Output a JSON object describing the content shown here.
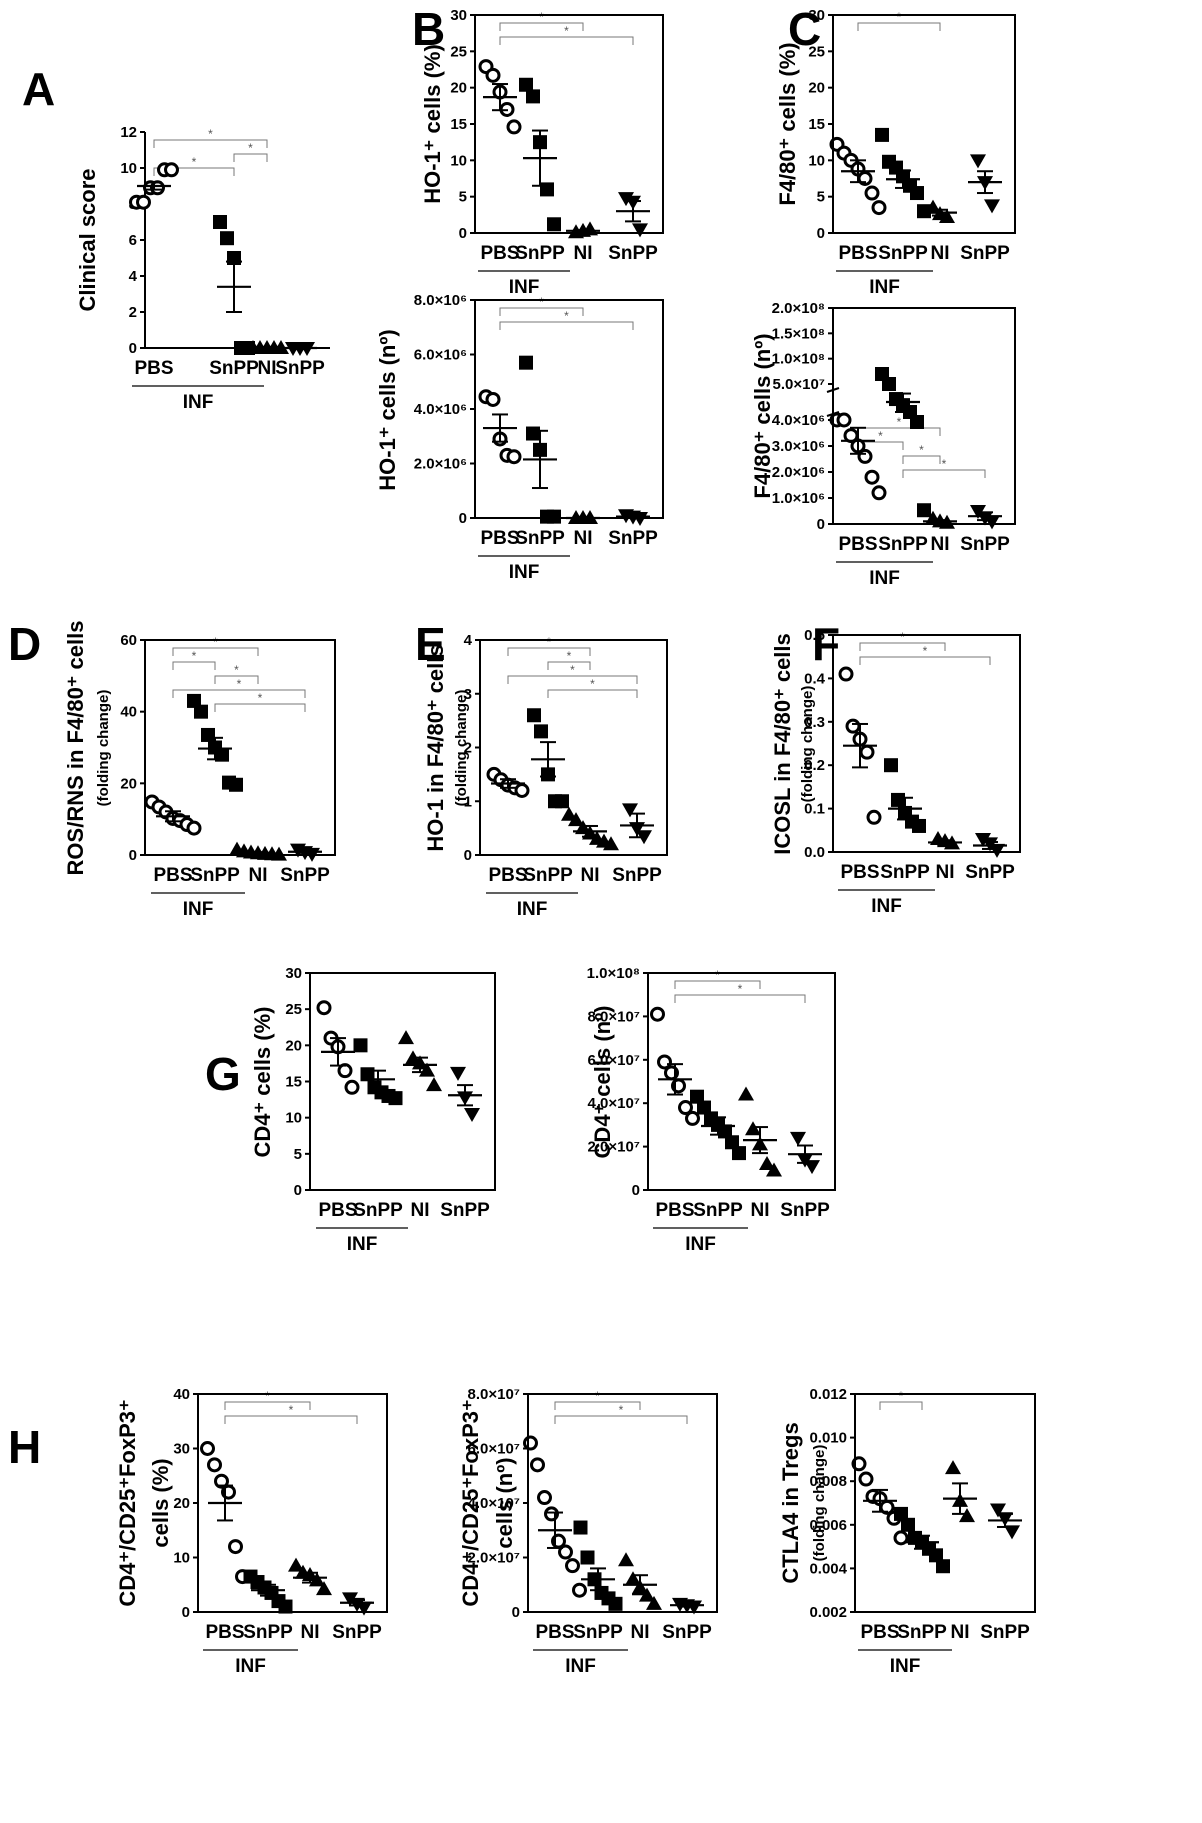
{
  "figure": {
    "panel_labels": [
      "A",
      "B",
      "C",
      "D",
      "E",
      "F",
      "G",
      "H"
    ],
    "group_label": "INF",
    "significance_marker": "*"
  },
  "chart_data": [
    {
      "id": "A",
      "type": "scatter",
      "ylabel": "Clinical score",
      "ylim": [
        0,
        12
      ],
      "yticks": [
        "0",
        "2",
        "4",
        "6",
        "8",
        "10",
        "12"
      ],
      "categories": [
        "PBS",
        "SnPP",
        "NI",
        "SnPP"
      ],
      "markers": [
        "circle",
        "square",
        "triangle",
        "tri-down"
      ],
      "means": [
        9.0,
        3.4,
        0.0,
        0.0
      ],
      "sems": [
        0.2,
        1.4,
        0,
        0
      ],
      "points": [
        [
          8.1,
          8.1,
          8.9,
          8.9,
          9.9,
          9.9
        ],
        [
          7.0,
          6.1,
          5.0,
          0,
          0
        ],
        [
          0,
          0,
          0,
          0,
          0
        ],
        [
          0,
          0,
          0
        ]
      ],
      "brackets": [
        [
          1,
          3
        ],
        [
          2,
          3
        ],
        [
          1,
          2
        ]
      ],
      "inf_bracket": [
        1,
        2
      ]
    },
    {
      "id": "B1",
      "type": "scatter",
      "ylabel": "HO-1⁺ cells (%)",
      "ylim": [
        0,
        30
      ],
      "yticks": [
        "0",
        "5",
        "10",
        "15",
        "20",
        "25",
        "30"
      ],
      "categories": [
        "PBS",
        "SnPP",
        "NI",
        "SnPP"
      ],
      "markers": [
        "circle",
        "square",
        "triangle",
        "tri-down"
      ],
      "means": [
        18.7,
        10.3,
        0.3,
        3.0
      ],
      "sems": [
        1.8,
        3.8,
        0.1,
        1.4
      ],
      "points": [
        [
          22.9,
          21.7,
          19.4,
          17.0,
          14.6
        ],
        [
          20.4,
          18.8,
          12.5,
          6.0,
          1.2
        ],
        [
          0.1,
          0.3,
          0.5
        ],
        [
          4.8,
          4.3,
          0.5
        ]
      ],
      "brackets": [
        [
          1,
          3
        ],
        [
          1,
          4
        ]
      ],
      "inf_bracket": [
        1,
        2
      ]
    },
    {
      "id": "B2",
      "type": "scatter",
      "ylabel": "HO-1⁺ cells (nº)",
      "ylim": [
        0,
        8000000
      ],
      "yticks": [
        "0",
        "2.0×10⁶",
        "4.0×10⁶",
        "6.0×10⁶",
        "8.0×10⁶"
      ],
      "categories": [
        "PBS",
        "SnPP",
        "NI",
        "SnPP"
      ],
      "markers": [
        "circle",
        "square",
        "triangle",
        "tri-down"
      ],
      "means": [
        3300000,
        2150000,
        0,
        50000
      ],
      "sems": [
        500000,
        1050000,
        0,
        20000
      ],
      "points": [
        [
          4450000,
          4350000,
          2900000,
          2300000,
          2250000
        ],
        [
          5700000,
          3100000,
          2500000,
          50000,
          50000
        ],
        [
          0,
          0,
          0
        ],
        [
          100000,
          50000,
          0
        ]
      ],
      "brackets": [
        [
          1,
          3
        ],
        [
          1,
          4
        ]
      ],
      "inf_bracket": [
        1,
        2
      ]
    },
    {
      "id": "C1",
      "type": "scatter",
      "ylabel": "F4/80⁺ cells (%)",
      "ylim": [
        0,
        30
      ],
      "yticks": [
        "0",
        "5",
        "10",
        "15",
        "20",
        "25",
        "30"
      ],
      "categories": [
        "PBS",
        "SnPP",
        "NI",
        "SnPP"
      ],
      "markers": [
        "circle",
        "square",
        "triangle",
        "tri-down"
      ],
      "means": [
        8.5,
        7.4,
        2.8,
        7.0
      ],
      "sems": [
        1.5,
        1.2,
        0.4,
        1.5
      ],
      "points": [
        [
          12.2,
          11.0,
          10.0,
          8.8,
          7.5,
          5.5,
          3.5
        ],
        [
          13.5,
          9.8,
          9.0,
          7.8,
          6.5,
          5.5,
          3.0
        ],
        [
          3.5,
          2.6,
          2.2
        ],
        [
          10.0,
          7.0,
          3.8
        ]
      ],
      "brackets": [
        [
          1,
          3
        ]
      ],
      "inf_bracket": [
        1,
        2
      ]
    },
    {
      "id": "C2",
      "type": "scatter",
      "ylabel": "F4/80⁺ cells (nº)",
      "broken_axis": true,
      "yticks_upper": [
        "5.0×10⁷",
        "1.0×10⁸",
        "1.5×10⁸",
        "2.0×10⁸"
      ],
      "yticks": [
        "0",
        "1.0×10⁶",
        "2.0×10⁶",
        "3.0×10⁶",
        "4.0×10⁶"
      ],
      "categories": [
        "PBS",
        "SnPP",
        "NI",
        "SnPP"
      ],
      "markers": [
        "circle",
        "square",
        "triangle",
        "tri-down"
      ],
      "means": [
        3200000,
        36000000,
        100000,
        300000
      ],
      "sems": [
        500000,
        6000000,
        50000,
        150000
      ],
      "points": [
        [
          4000000,
          4000000,
          3400000,
          3000000,
          2600000,
          1800000,
          1200000
        ],
        [
          60000000,
          50000000,
          38000000,
          34000000,
          30000000,
          25000000,
          5000000
        ],
        [
          200000,
          100000,
          50000
        ],
        [
          500000,
          250000,
          100000
        ]
      ],
      "brackets": [
        [
          1,
          3
        ],
        [
          1,
          2
        ],
        [
          2,
          3
        ],
        [
          2,
          4
        ]
      ],
      "inf_bracket": [
        1,
        2
      ]
    },
    {
      "id": "D",
      "type": "scatter",
      "ylabel": "ROS/RNS in F4/80⁺ cells",
      "ylabel_sub": "(folding change)",
      "ylim": [
        0,
        60
      ],
      "yticks": [
        "0",
        "20",
        "40",
        "60"
      ],
      "categories": [
        "PBS",
        "SnPP",
        "NI",
        "SnPP"
      ],
      "markers": [
        "circle",
        "square",
        "triangle",
        "tri-down"
      ],
      "means": [
        10.8,
        29.7,
        0.6,
        0.9
      ],
      "sems": [
        1.4,
        3.0,
        0.2,
        0.3
      ],
      "points": [
        [
          14.8,
          13.4,
          12.0,
          10.2,
          9.6,
          8.5,
          7.5
        ],
        [
          43.0,
          40.0,
          33.5,
          30.0,
          28.0,
          20.2,
          19.6
        ],
        [
          1.5,
          1.0,
          0.7,
          0.5,
          0.3,
          0.2,
          0.1
        ],
        [
          1.5,
          0.8,
          0.3
        ]
      ],
      "brackets": [
        [
          1,
          3
        ],
        [
          1,
          2
        ],
        [
          2,
          3
        ],
        [
          1,
          4
        ],
        [
          2,
          4
        ]
      ],
      "inf_bracket": [
        1,
        2
      ]
    },
    {
      "id": "E",
      "type": "scatter",
      "ylabel": "HO-1 in F4/80⁺ cells",
      "ylabel_sub": "(folding change)",
      "ylim": [
        0,
        4
      ],
      "yticks": [
        "0",
        "1",
        "2",
        "3",
        "4"
      ],
      "categories": [
        "PBS",
        "SnPP",
        "NI",
        "SnPP"
      ],
      "markers": [
        "circle",
        "square",
        "triangle",
        "tri-down"
      ],
      "means": [
        1.33,
        1.78,
        0.44,
        0.55
      ],
      "sems": [
        0.08,
        0.32,
        0.1,
        0.22
      ],
      "points": [
        [
          1.5,
          1.4,
          1.3,
          1.25,
          1.2
        ],
        [
          2.6,
          2.3,
          1.5,
          1.0,
          1.0
        ],
        [
          0.75,
          0.65,
          0.5,
          0.4,
          0.3,
          0.25,
          0.2
        ],
        [
          0.85,
          0.5,
          0.35
        ]
      ],
      "brackets": [
        [
          1,
          3
        ],
        [
          2,
          3
        ],
        [
          1,
          4
        ],
        [
          2,
          4
        ]
      ],
      "inf_bracket": [
        1,
        2
      ]
    },
    {
      "id": "F",
      "type": "scatter",
      "ylabel": "ICOSL in F4/80⁺ cells",
      "ylabel_sub": "(folding change)",
      "ylim": [
        0,
        0.5
      ],
      "yticks": [
        "0.0",
        "0.1",
        "0.2",
        "0.3",
        "0.4",
        "0.5"
      ],
      "categories": [
        "PBS",
        "SnPP",
        "NI",
        "SnPP"
      ],
      "markers": [
        "circle",
        "square",
        "triangle",
        "tri-down"
      ],
      "means": [
        0.245,
        0.1,
        0.022,
        0.015
      ],
      "sems": [
        0.05,
        0.025,
        0.005,
        0.008
      ],
      "points": [
        [
          0.41,
          0.29,
          0.26,
          0.23,
          0.08
        ],
        [
          0.2,
          0.12,
          0.09,
          0.07,
          0.06
        ],
        [
          0.03,
          0.025,
          0.02
        ],
        [
          0.03,
          0.02,
          0.005
        ]
      ],
      "brackets": [
        [
          1,
          3
        ],
        [
          1,
          4
        ]
      ],
      "inf_bracket": [
        1,
        2
      ]
    },
    {
      "id": "G1",
      "type": "scatter",
      "ylabel": "CD4⁺ cells (%)",
      "ylim": [
        0,
        30
      ],
      "yticks": [
        "0",
        "5",
        "10",
        "15",
        "20",
        "25",
        "30"
      ],
      "categories": [
        "PBS",
        "SnPP",
        "NI",
        "SnPP"
      ],
      "markers": [
        "circle",
        "square",
        "triangle",
        "tri-down"
      ],
      "means": [
        19.1,
        15.3,
        17.3,
        13.1
      ],
      "sems": [
        1.9,
        1.2,
        1.0,
        1.4
      ],
      "points": [
        [
          25.2,
          21.0,
          19.8,
          16.5,
          14.2
        ],
        [
          20.0,
          16.0,
          14.2,
          13.5,
          13.0,
          12.7
        ],
        [
          21.0,
          18.2,
          17.5,
          16.5,
          14.5
        ],
        [
          16.2,
          12.8,
          10.5
        ]
      ],
      "brackets": [],
      "inf_bracket": [
        1,
        2
      ]
    },
    {
      "id": "G2",
      "type": "scatter",
      "ylabel": "CD4⁺ cells (nº)",
      "ylim": [
        0,
        100000000
      ],
      "yticks": [
        "0",
        "2.0×10⁷",
        "4.0×10⁷",
        "6.0×10⁷",
        "8.0×10⁷",
        "1.0×10⁸"
      ],
      "categories": [
        "PBS",
        "SnPP",
        "NI",
        "SnPP"
      ],
      "markers": [
        "circle",
        "square",
        "triangle",
        "tri-down"
      ],
      "means": [
        51000000,
        29500000,
        23000000,
        16500000
      ],
      "sems": [
        7000000,
        4000000,
        6000000,
        4000000
      ],
      "points": [
        [
          81000000,
          59000000,
          54000000,
          48000000,
          38000000,
          33000000
        ],
        [
          43000000,
          38000000,
          33000000,
          30000000,
          27000000,
          22000000,
          17000000
        ],
        [
          44000000,
          28000000,
          21000000,
          12000000,
          9000000
        ],
        [
          24000000,
          14000000,
          11000000
        ]
      ],
      "brackets": [
        [
          1,
          3
        ],
        [
          1,
          4
        ]
      ],
      "inf_bracket": [
        1,
        2
      ]
    },
    {
      "id": "H1",
      "type": "scatter",
      "ylabel": "CD4⁺/CD25⁺FoxP3⁺",
      "ylabel2": "cells (%)",
      "ylim": [
        0,
        40
      ],
      "yticks": [
        "0",
        "10",
        "20",
        "30",
        "40"
      ],
      "categories": [
        "PBS",
        "SnPP",
        "NI",
        "SnPP"
      ],
      "markers": [
        "circle",
        "square",
        "triangle",
        "tri-down"
      ],
      "means": [
        20.0,
        4.0,
        6.3,
        1.7
      ],
      "sems": [
        3.2,
        1.0,
        0.9,
        0.5
      ],
      "points": [
        [
          30.0,
          27.0,
          24.0,
          22.0,
          12.0,
          6.5
        ],
        [
          6.5,
          5.5,
          4.5,
          3.5,
          2.0,
          1.0
        ],
        [
          8.5,
          7.2,
          6.8,
          5.8,
          4.2
        ],
        [
          2.5,
          1.5,
          0.8
        ]
      ],
      "brackets": [
        [
          1,
          3
        ],
        [
          1,
          4
        ]
      ],
      "inf_bracket": [
        1,
        2
      ]
    },
    {
      "id": "H2",
      "type": "scatter",
      "ylabel": "CD4⁺/CD25⁺FoxP3⁺",
      "ylabel2": "cells (nº)",
      "ylim": [
        0,
        80000000
      ],
      "yticks": [
        "0",
        "2.0×10⁷",
        "4.0×10⁷",
        "6.0×10⁷",
        "8.0×10⁷"
      ],
      "categories": [
        "PBS",
        "SnPP",
        "NI",
        "SnPP"
      ],
      "markers": [
        "circle",
        "square",
        "triangle",
        "tri-down"
      ],
      "means": [
        30000000,
        12000000,
        10000000,
        2500000
      ],
      "sems": [
        6500000,
        4000000,
        3500000,
        500000
      ],
      "points": [
        [
          62000000,
          54000000,
          42000000,
          36000000,
          26000000,
          22000000,
          17000000,
          8000000
        ],
        [
          31000000,
          20000000,
          12000000,
          7000000,
          5000000,
          3000000
        ],
        [
          19000000,
          12000000,
          9000000,
          6000000,
          3000000
        ],
        [
          3000000,
          2500000,
          2000000
        ]
      ],
      "brackets": [
        [
          1,
          3
        ],
        [
          1,
          4
        ]
      ],
      "inf_bracket": [
        1,
        2
      ]
    },
    {
      "id": "H3",
      "type": "scatter",
      "ylabel": "CTLA4 in Tregs",
      "ylabel_sub": "(folding change)",
      "ylim": [
        0.002,
        0.012
      ],
      "yticks": [
        "0.002",
        "0.004",
        "0.006",
        "0.008",
        "0.010",
        "0.012"
      ],
      "categories": [
        "PBS",
        "SnPP",
        "NI",
        "SnPP"
      ],
      "markers": [
        "circle",
        "square",
        "triangle",
        "tri-down"
      ],
      "means": [
        0.0071,
        0.0052,
        0.0072,
        0.0062
      ],
      "sems": [
        0.0005,
        0.0003,
        0.0007,
        0.0003
      ],
      "points": [
        [
          0.0088,
          0.0081,
          0.0073,
          0.0072,
          0.0068,
          0.0063,
          0.0054
        ],
        [
          0.0065,
          0.006,
          0.0054,
          0.0052,
          0.0049,
          0.0046,
          0.0041
        ],
        [
          0.0086,
          0.0071,
          0.0064
        ],
        [
          0.0067,
          0.0063,
          0.0057
        ]
      ],
      "brackets": [
        [
          1,
          2
        ]
      ],
      "inf_bracket": [
        1,
        2
      ]
    }
  ]
}
